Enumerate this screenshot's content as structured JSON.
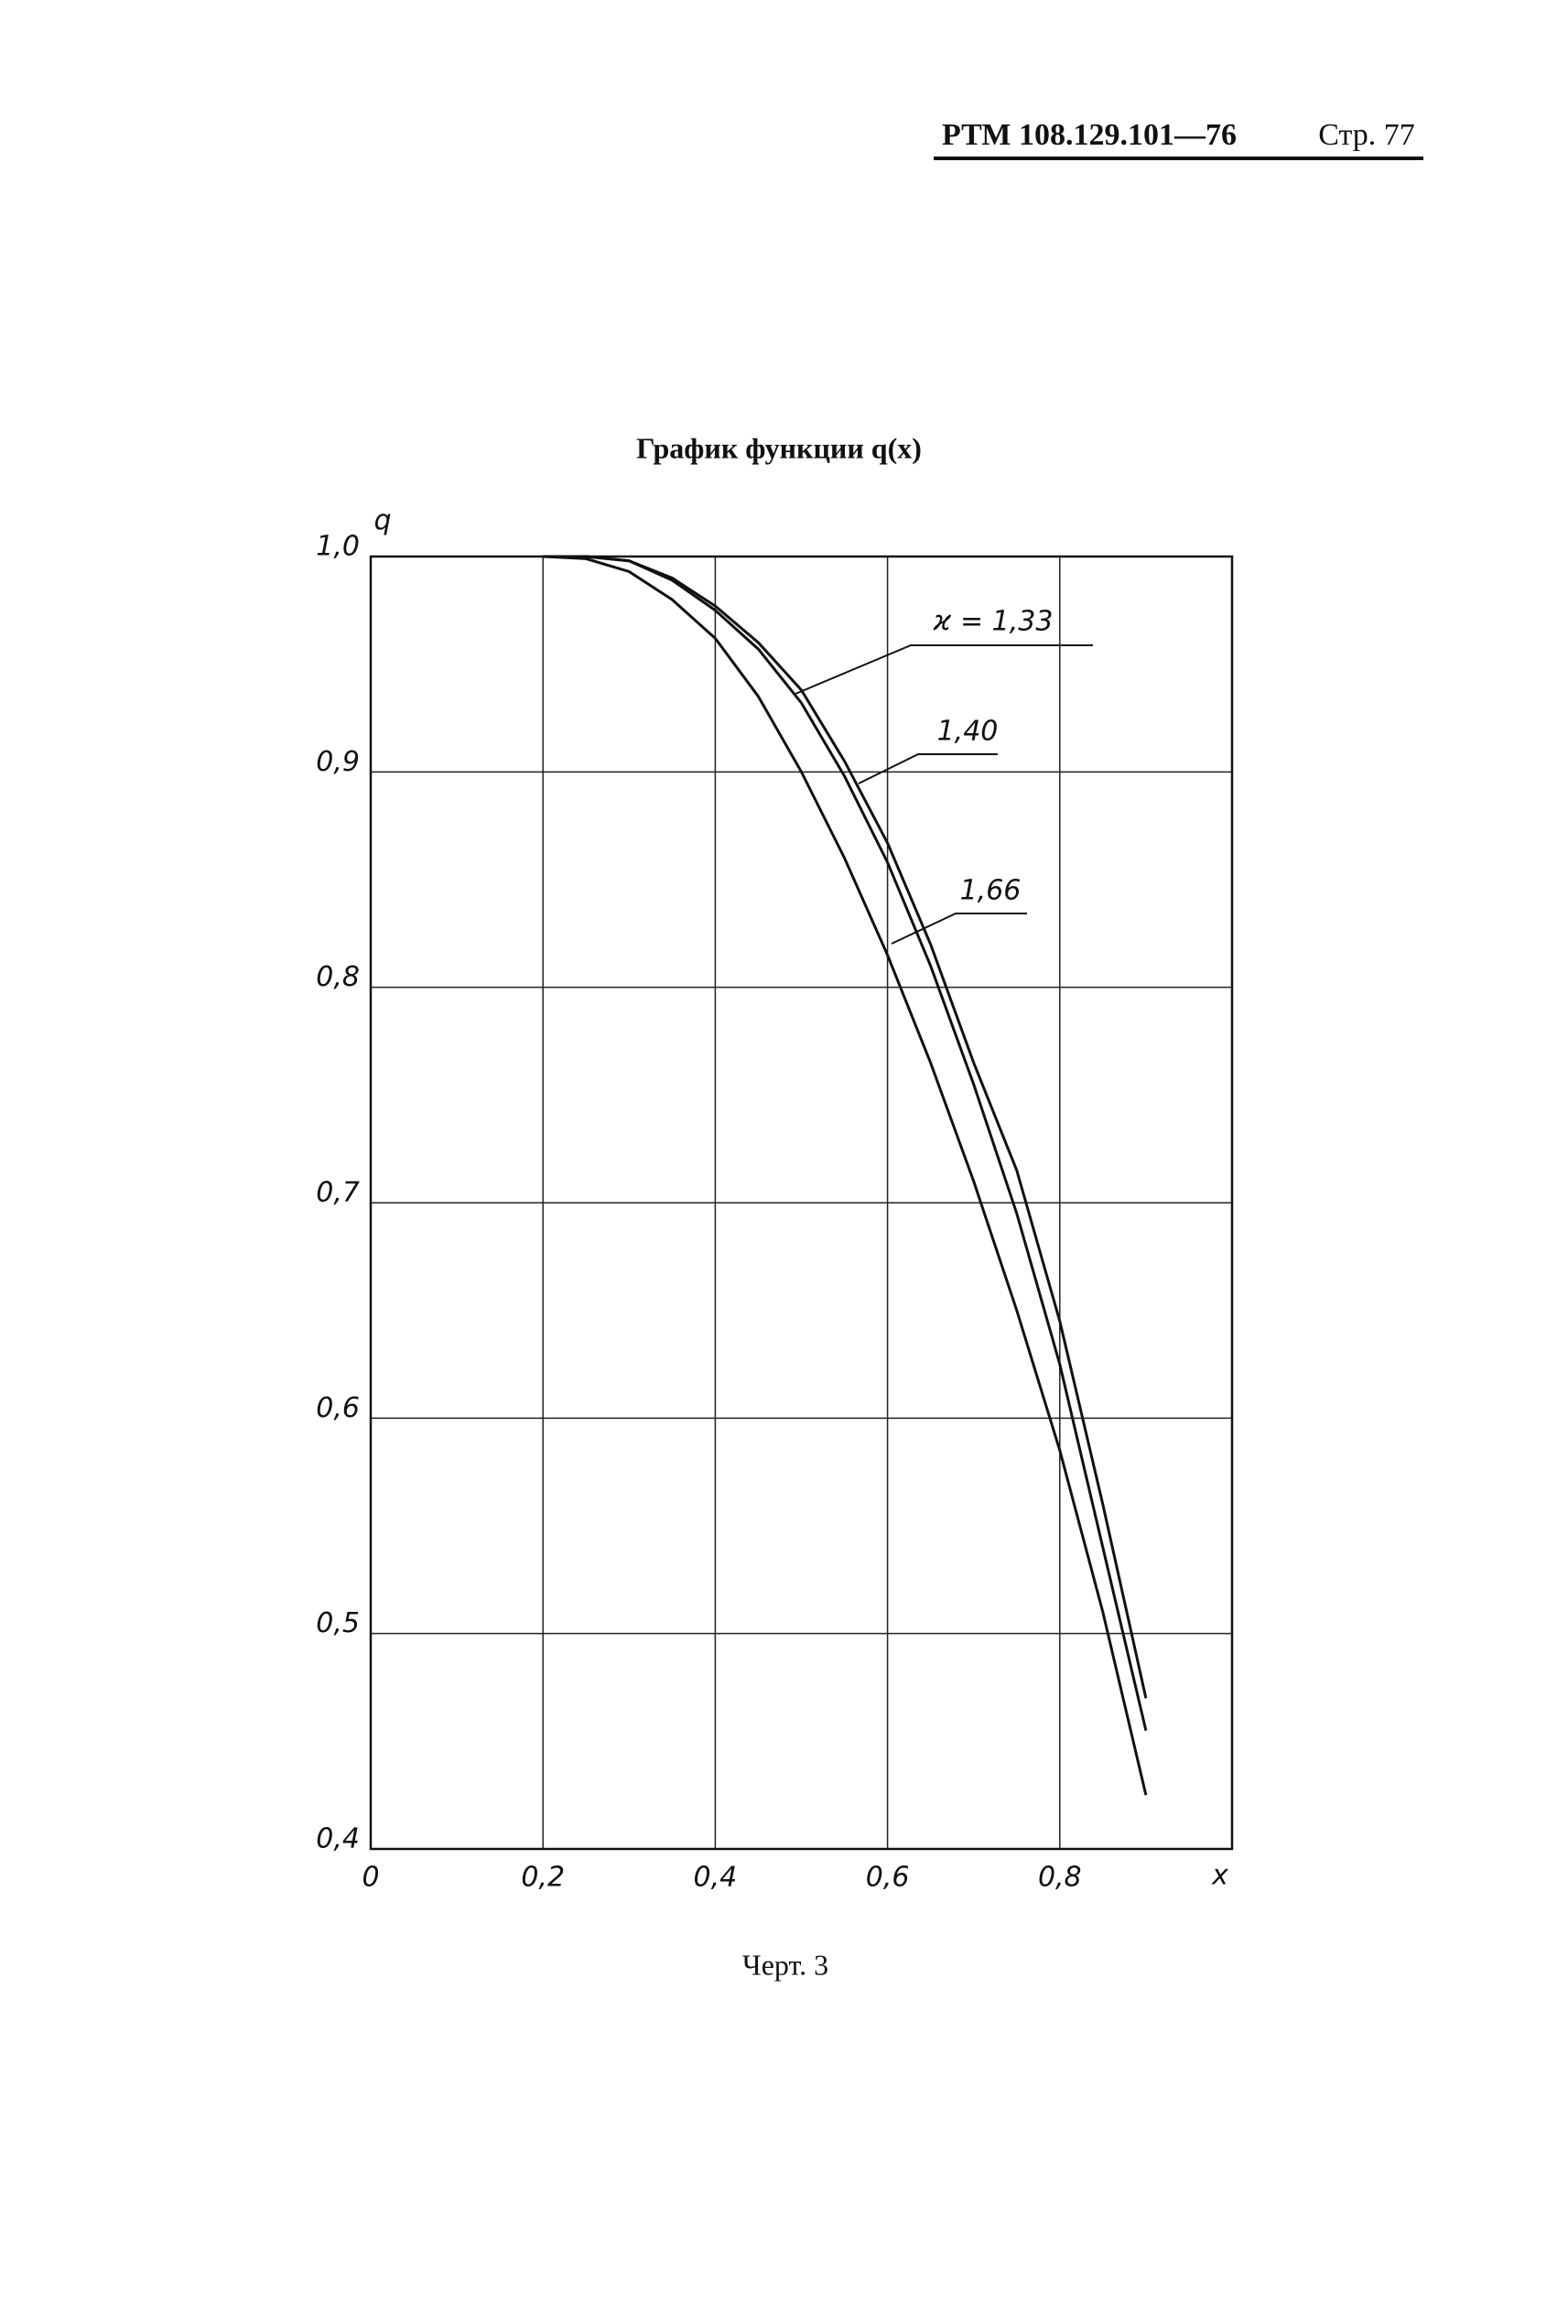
{
  "header": {
    "document": "РТМ 108.129.101—76",
    "page": "Стр. 77"
  },
  "caption": "Черт. 3",
  "chart_data": {
    "type": "line",
    "title": "График функции q(x)",
    "xlabel": "x",
    "ylabel": "q",
    "x": [
      0.2,
      0.25,
      0.3,
      0.35,
      0.4,
      0.45,
      0.5,
      0.55,
      0.6,
      0.65,
      0.7,
      0.75,
      0.8,
      0.85,
      0.9
    ],
    "series": [
      {
        "name": "ϰ = 1,33",
        "color": "#111111",
        "values": [
          1.0,
          1.0,
          0.998,
          0.99,
          0.977,
          0.96,
          0.938,
          0.905,
          0.867,
          0.82,
          0.765,
          0.715,
          0.645,
          0.56,
          0.47
        ]
      },
      {
        "name": "1,40",
        "color": "#111111",
        "values": [
          1.0,
          1.0,
          0.998,
          0.989,
          0.975,
          0.957,
          0.932,
          0.898,
          0.858,
          0.81,
          0.755,
          0.695,
          0.625,
          0.54,
          0.455
        ]
      },
      {
        "name": "1,66",
        "color": "#111111",
        "values": [
          1.0,
          0.999,
          0.993,
          0.98,
          0.962,
          0.935,
          0.9,
          0.86,
          0.815,
          0.765,
          0.71,
          0.65,
          0.585,
          0.51,
          0.425
        ]
      }
    ],
    "xlim": [
      0,
      1.0
    ],
    "ylim": [
      0.4,
      1.0
    ],
    "xticks": [
      0,
      {
        "value": 0.2,
        "label": "0,2"
      },
      {
        "value": 0.4,
        "label": "0,4"
      },
      {
        "value": 0.6,
        "label": "0,6"
      },
      {
        "value": 0.8,
        "label": "0,8"
      }
    ],
    "yticks": [
      {
        "value": 0.4,
        "label": "0,4"
      },
      {
        "value": 0.5,
        "label": "0,5"
      },
      {
        "value": 0.6,
        "label": "0,6"
      },
      {
        "value": 0.7,
        "label": "0,7"
      },
      {
        "value": 0.8,
        "label": "0,8"
      },
      {
        "value": 0.9,
        "label": "0,9"
      },
      {
        "value": 1.0,
        "label": "1,0"
      }
    ],
    "grid": true
  }
}
